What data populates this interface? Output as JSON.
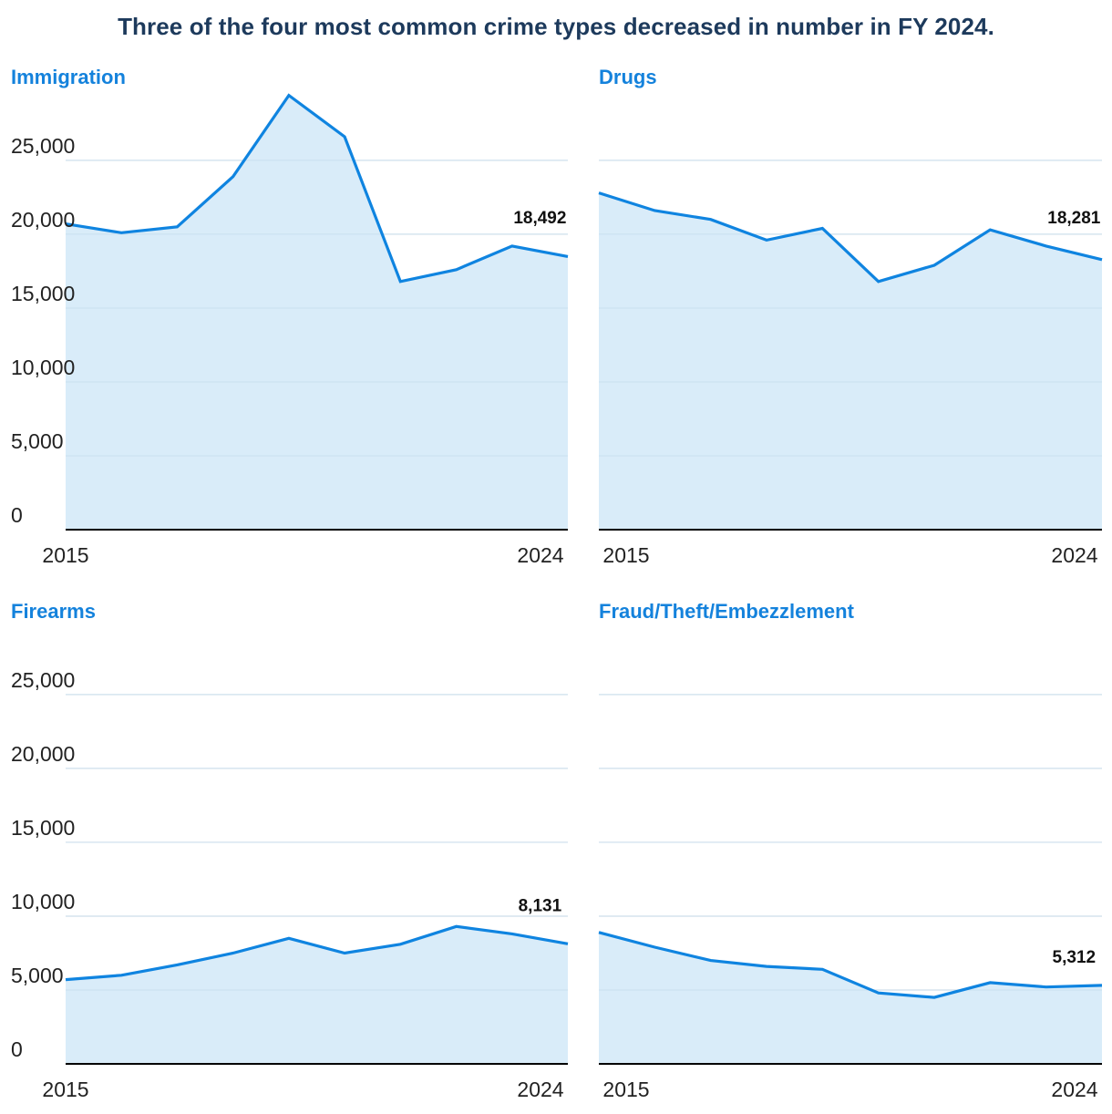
{
  "title": "Three of the four most common crime types decreased in number in FY 2024.",
  "colors": {
    "title": "#1d3a5c",
    "accent": "#1482dc",
    "line": "#0f84e0",
    "fill": "#d9ecf9",
    "grid": "#d9d9d9",
    "axis": "#000000"
  },
  "chart_data": [
    {
      "type": "area",
      "title": "Immigration",
      "x": [
        2015,
        2016,
        2017,
        2018,
        2019,
        2020,
        2021,
        2022,
        2023,
        2024
      ],
      "values": [
        20700,
        20100,
        20500,
        23900,
        29400,
        26600,
        16800,
        17600,
        19200,
        18492
      ],
      "xticks": [
        "2015",
        "2024"
      ],
      "yticks": [
        0,
        5000,
        10000,
        15000,
        20000,
        25000
      ],
      "ytick_labels": [
        "0",
        "5,000",
        "10,000",
        "15,000",
        "20,000",
        "25,000"
      ],
      "ylim": [
        0,
        29500
      ],
      "end_label": "18,492",
      "show_y_labels": true
    },
    {
      "type": "area",
      "title": "Drugs",
      "x": [
        2015,
        2016,
        2017,
        2018,
        2019,
        2020,
        2021,
        2022,
        2023,
        2024
      ],
      "values": [
        22800,
        21600,
        21000,
        19600,
        20400,
        16800,
        17900,
        20300,
        19200,
        18281
      ],
      "xticks": [
        "2015",
        "2024"
      ],
      "yticks": [
        0,
        5000,
        10000,
        15000,
        20000,
        25000
      ],
      "ytick_labels": [
        "",
        "",
        "",
        "",
        "",
        ""
      ],
      "ylim": [
        0,
        29500
      ],
      "end_label": "18,281",
      "show_y_labels": false
    },
    {
      "type": "area",
      "title": "Firearms",
      "x": [
        2015,
        2016,
        2017,
        2018,
        2019,
        2020,
        2021,
        2022,
        2023,
        2024
      ],
      "values": [
        5700,
        6000,
        6700,
        7500,
        8500,
        7500,
        8100,
        9300,
        8800,
        8131
      ],
      "xticks": [
        "2015",
        "2024"
      ],
      "yticks": [
        0,
        5000,
        10000,
        15000,
        20000,
        25000
      ],
      "ytick_labels": [
        "0",
        "5,000",
        "10,000",
        "15,000",
        "20,000",
        "25,000"
      ],
      "ylim": [
        0,
        29500
      ],
      "end_label": "8,131",
      "show_y_labels": true
    },
    {
      "type": "area",
      "title": "Fraud/Theft/Embezzlement",
      "x": [
        2015,
        2016,
        2017,
        2018,
        2019,
        2020,
        2021,
        2022,
        2023,
        2024
      ],
      "values": [
        8900,
        7900,
        7000,
        6600,
        6400,
        4800,
        4500,
        5500,
        5200,
        5312
      ],
      "xticks": [
        "2015",
        "2024"
      ],
      "yticks": [
        0,
        5000,
        10000,
        15000,
        20000,
        25000
      ],
      "ytick_labels": [
        "",
        "",
        "",
        "",
        "",
        ""
      ],
      "ylim": [
        0,
        29500
      ],
      "end_label": "5,312",
      "show_y_labels": false
    }
  ]
}
